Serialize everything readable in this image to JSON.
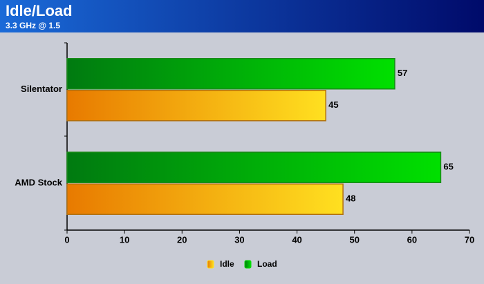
{
  "chart_data": {
    "type": "bar",
    "orientation": "horizontal",
    "title": "Idle/Load",
    "subtitle": "3.3 GHz @ 1.5",
    "categories": [
      "Silentator",
      "AMD Stock"
    ],
    "series": [
      {
        "name": "Idle",
        "color": "#ffe020",
        "values": [
          45,
          48
        ]
      },
      {
        "name": "Load",
        "color": "#00e000",
        "values": [
          57,
          65
        ]
      }
    ],
    "xlim": [
      0,
      70
    ],
    "xticks": [
      0,
      10,
      20,
      30,
      40,
      50,
      60,
      70
    ],
    "legend": "bottom"
  }
}
